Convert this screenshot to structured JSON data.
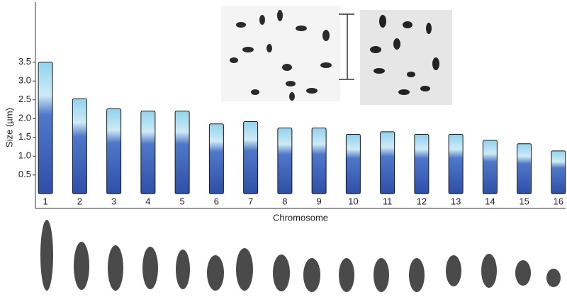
{
  "chart_data": {
    "type": "bar",
    "y_label": "Size (µm)",
    "x_label": "Chromosome",
    "categories": [
      "1",
      "2",
      "3",
      "4",
      "5",
      "6",
      "7",
      "8",
      "9",
      "10",
      "11",
      "12",
      "13",
      "14",
      "15",
      "16"
    ],
    "values": [
      3.5,
      2.53,
      2.26,
      2.2,
      2.2,
      1.86,
      1.92,
      1.75,
      1.75,
      1.58,
      1.65,
      1.58,
      1.58,
      1.42,
      1.33,
      1.14
    ],
    "color": "#3f5fb8",
    "ylim": [
      0,
      5.1
    ],
    "yticks": [
      0.5,
      {
        "value": 1,
        "label": "1.0"
      },
      1.5,
      {
        "value": 2,
        "label": "2.0"
      },
      2.5,
      {
        "value": 3,
        "label": "3.0"
      },
      3.5
    ]
  }
}
